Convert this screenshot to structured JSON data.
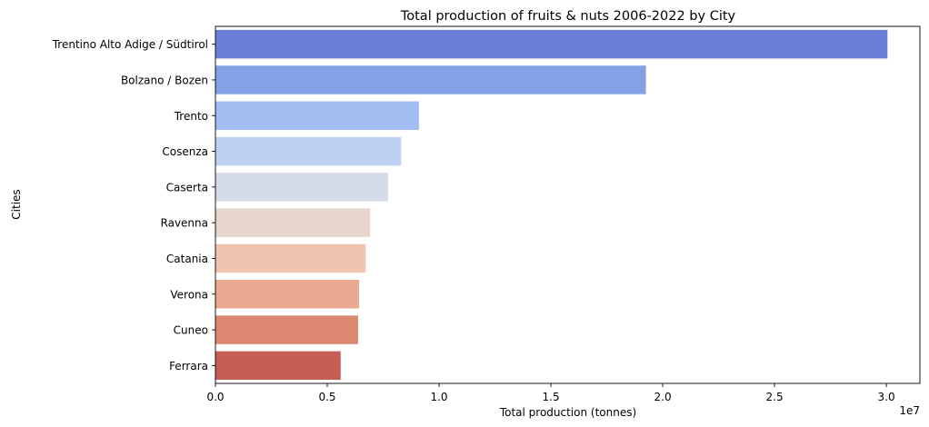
{
  "chart_data": {
    "type": "bar",
    "orientation": "horizontal",
    "title": "Total production of fruits & nuts 2006-2022 by City",
    "xlabel": "Total production (tonnes)",
    "ylabel": "Cities",
    "x_offset_label": "1e7",
    "xlim": [
      0,
      31500000
    ],
    "xticks": [
      0,
      5000000,
      10000000,
      15000000,
      20000000,
      25000000,
      30000000
    ],
    "xtick_labels": [
      "0.0",
      "0.5",
      "1.0",
      "1.5",
      "2.0",
      "2.5",
      "3.0"
    ],
    "categories": [
      "Trentino Alto Adige / Südtirol",
      "Bolzano / Bozen",
      "Trento",
      "Cosenza",
      "Caserta",
      "Ravenna",
      "Catania",
      "Verona",
      "Cuneo",
      "Ferrara"
    ],
    "values": [
      30050000,
      19250000,
      9100000,
      8300000,
      7720000,
      6920000,
      6720000,
      6420000,
      6380000,
      5600000
    ],
    "colors": [
      "#6a80d6",
      "#84a1e6",
      "#a3bcf2",
      "#bed1f3",
      "#d5dbe8",
      "#e6d6cc",
      "#edc5b1",
      "#e9a990",
      "#dd8871",
      "#c55f55"
    ],
    "grid": false,
    "legend": "none"
  }
}
